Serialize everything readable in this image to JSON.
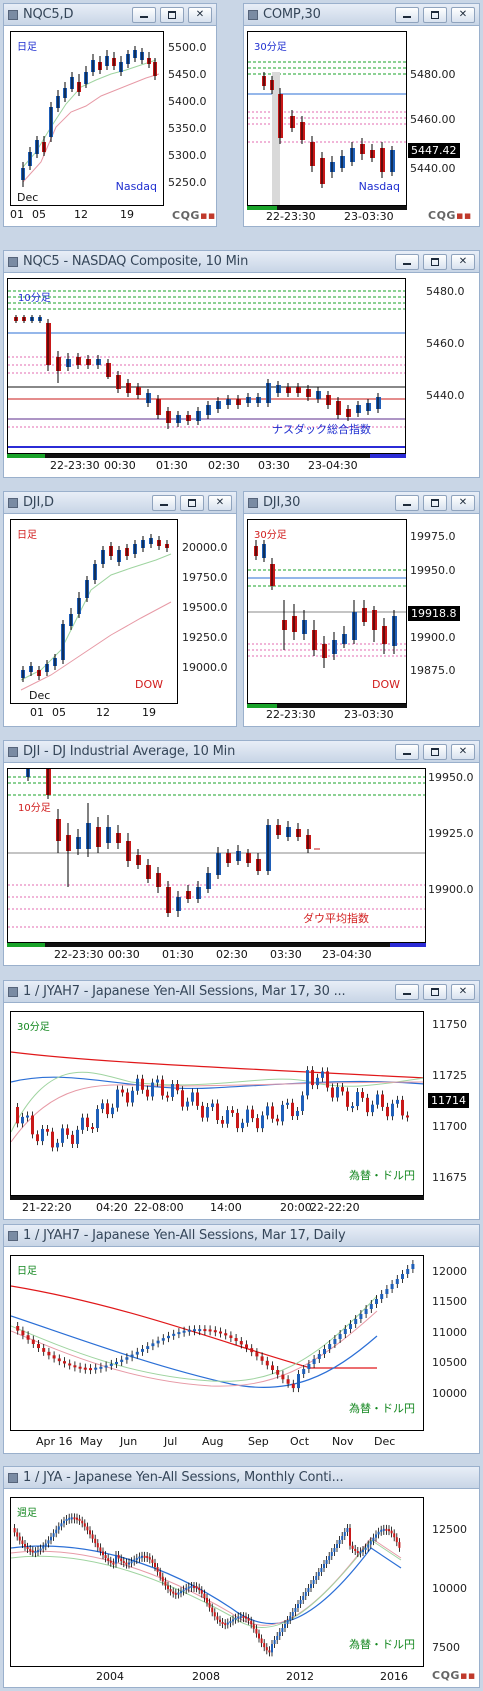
{
  "windows": [
    {
      "title": "NQC5,D",
      "timeframe_label": "日足",
      "label_color": "#1f2fd0",
      "instrument_label": "Nasdaq",
      "instrument_color": "#1f2fd0",
      "y_ticks": [
        "5500.0",
        "5450.0",
        "5400.0",
        "5350.0",
        "5300.0",
        "5250.0"
      ],
      "x_ticks": [
        "01",
        "05",
        "12",
        "19"
      ],
      "x_top_label": "Dec",
      "cqg": "CQG"
    },
    {
      "title": "COMP,30",
      "timeframe_label": "30分足",
      "label_color": "#1f2fd0",
      "instrument_label": "Nasdaq",
      "instrument_color": "#1f2fd0",
      "y_ticks": [
        "5480.00",
        "5460.00",
        "5440.00"
      ],
      "last_price": "5447.42",
      "x_ticks": [
        "22-23:30",
        "23-03:30"
      ],
      "cqg": "CQG"
    },
    {
      "title": "NQC5 - NASDAQ Composite, 10 Min",
      "timeframe_label": "10分足",
      "label_color": "#1f2fd0",
      "instrument_label": "ナスダック総合指数",
      "instrument_color": "#1f2fd0",
      "y_ticks": [
        "5480.0",
        "5460.0",
        "5440.0"
      ],
      "x_ticks": [
        "22-23:30",
        "00:30",
        "01:30",
        "02:30",
        "03:30",
        "23-04:30"
      ]
    },
    {
      "title": "DJI,D",
      "timeframe_label": "日足",
      "label_color": "#d11d1d",
      "instrument_label": "DOW",
      "instrument_color": "#d11d1d",
      "y_ticks": [
        "20000.0",
        "19750.0",
        "19500.0",
        "19250.0",
        "19000.0"
      ],
      "x_ticks": [
        "01",
        "05",
        "12",
        "19"
      ],
      "x_top_label": "Dec"
    },
    {
      "title": "DJI,30",
      "timeframe_label": "30分足",
      "label_color": "#d11d1d",
      "instrument_label": "DOW",
      "instrument_color": "#d11d1d",
      "y_ticks": [
        "19975.0",
        "19950.0",
        "19925.0",
        "19900.0",
        "19875.0"
      ],
      "last_price": "19918.8",
      "x_ticks": [
        "22-23:30",
        "23-03:30"
      ]
    },
    {
      "title": "DJI - DJ Industrial Average, 10 Min",
      "timeframe_label": "10分足",
      "label_color": "#d11d1d",
      "instrument_label": "ダウ平均指数",
      "instrument_color": "#d11d1d",
      "y_ticks": [
        "19950.0",
        "19925.0",
        "19900.0"
      ],
      "x_ticks": [
        "22-23:30",
        "00:30",
        "01:30",
        "02:30",
        "03:30",
        "23-04:30"
      ]
    },
    {
      "title": "1 / JYAH7 - Japanese Yen-All Sessions, Mar 17, 30 ...",
      "timeframe_label": "30分足",
      "label_color": "#13871f",
      "instrument_label": "為替・ドル円",
      "instrument_color": "#13871f",
      "y_ticks": [
        "11750",
        "11725",
        "11700",
        "11675"
      ],
      "last_price": "11714",
      "x_ticks": [
        "21-22:20",
        "04:20",
        "22-08:00",
        "14:00",
        "20:00",
        "22-22:20"
      ]
    },
    {
      "title": "1 / JYAH7 - Japanese Yen-All Sessions, Mar 17, Daily",
      "timeframe_label": "日足",
      "label_color": "#13871f",
      "instrument_label": "為替・ドル円",
      "instrument_color": "#13871f",
      "y_ticks": [
        "12000",
        "11500",
        "11000",
        "10500",
        "10000"
      ],
      "x_ticks": [
        "Apr 16",
        "May",
        "Jun",
        "Jul",
        "Aug",
        "Sep",
        "Oct",
        "Nov",
        "Dec"
      ]
    },
    {
      "title": "1 / JYA - Japanese Yen-All Sessions, Monthly Conti...",
      "timeframe_label": "週足",
      "label_color": "#13871f",
      "instrument_label": "為替・ドル円",
      "instrument_color": "#13871f",
      "y_ticks": [
        "12500",
        "10000",
        "7500"
      ],
      "x_ticks": [
        "2004",
        "2008",
        "2012",
        "2016"
      ],
      "cqg": "CQG"
    }
  ],
  "colors": {
    "bull": "#1f5fb8",
    "bear": "#c81818",
    "ma_red": "#e0181a",
    "ma_blue": "#2b6fd6",
    "ma_green": "#9fd4a0",
    "ma_pink": "#e79aa6",
    "level_green": "#19a32a",
    "level_pink": "#e36bb0"
  }
}
